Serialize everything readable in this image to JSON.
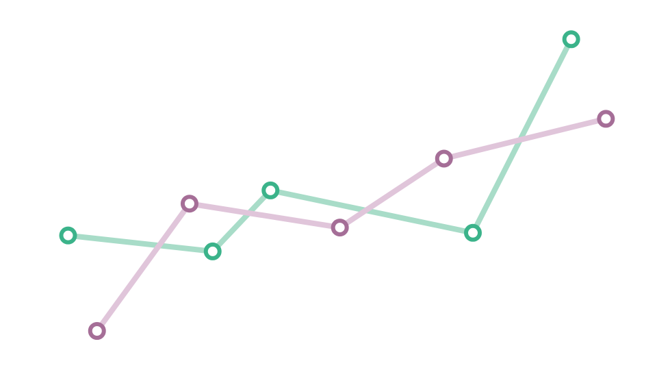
{
  "chart_data": {
    "type": "line",
    "title": "",
    "xlabel": "",
    "ylabel": "",
    "grid": false,
    "axes_visible": false,
    "legend": "none",
    "series": [
      {
        "color": "#3bb38a",
        "line_color": "#a8dcc8",
        "points": [
          {
            "x": 1.0,
            "y": 3.6
          },
          {
            "x": 3.5,
            "y": 3.0
          },
          {
            "x": 4.5,
            "y": 5.3
          },
          {
            "x": 8.0,
            "y": 3.7
          },
          {
            "x": 9.7,
            "y": 11.0
          }
        ]
      },
      {
        "color": "#a56e97",
        "line_color": "#e0c5da",
        "points": [
          {
            "x": 1.5,
            "y": 0.0
          },
          {
            "x": 3.1,
            "y": 4.8
          },
          {
            "x": 5.7,
            "y": 3.9
          },
          {
            "x": 7.5,
            "y": 6.5
          },
          {
            "x": 10.3,
            "y": 8.0
          }
        ]
      }
    ]
  }
}
